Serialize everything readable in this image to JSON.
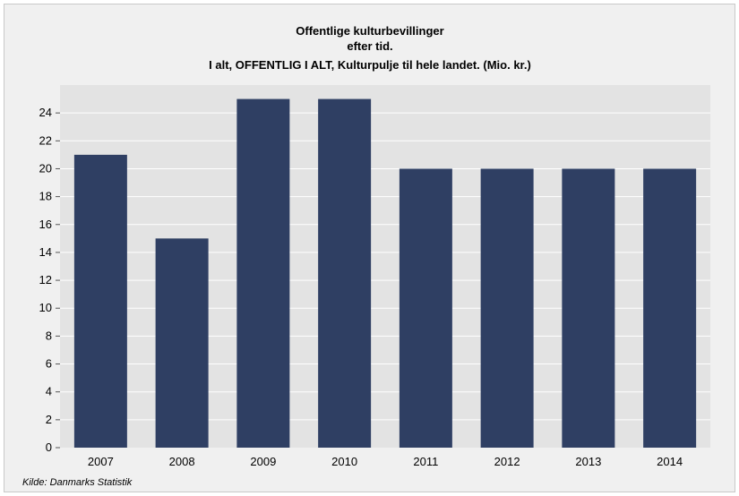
{
  "chart_data": {
    "type": "bar",
    "title": [
      "Offentlige kulturbevillinger",
      "efter tid.",
      "I alt, OFFENTLIG I ALT, Kulturpulje til hele landet. (Mio. kr.)"
    ],
    "categories": [
      "2007",
      "2008",
      "2009",
      "2010",
      "2011",
      "2012",
      "2013",
      "2014"
    ],
    "values": [
      21,
      15,
      25,
      25,
      20,
      20,
      20,
      20
    ],
    "ylim": [
      0,
      26
    ],
    "yticks": [
      0,
      2,
      4,
      6,
      8,
      10,
      12,
      14,
      16,
      18,
      20,
      22,
      24
    ],
    "grid": true,
    "source": "Kilde: Danmarks Statistik",
    "colors": {
      "bar": "#2f3f63",
      "plot_background": "#e3e3e3",
      "frame_background": "#f0f0f0",
      "gridline": "#ffffff"
    }
  }
}
